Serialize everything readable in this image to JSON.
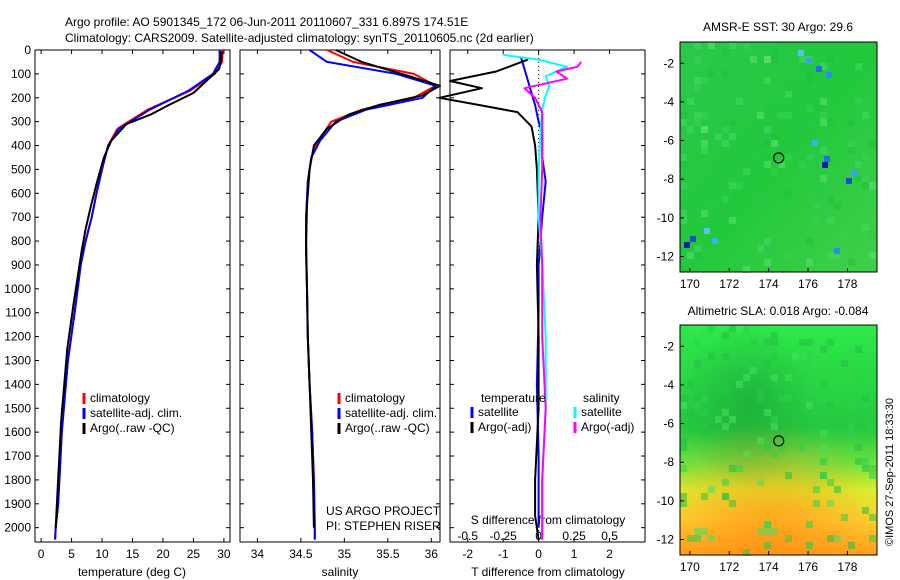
{
  "header": {
    "line1": "Argo profile: AO 5901345_172 06-Jun-2011 20110607_331 6.897S 174.51E",
    "line2": "Climatology: CARS2009. Satellite-adjusted climatology: synTS_20110605.nc (2d earlier)"
  },
  "credit": "©IMOS 27-Sep-2011 18:33:30",
  "colors": {
    "climatology": "#ff0000",
    "satellite": "#0000ff",
    "argo": "#000000",
    "salinity_satellite": "#00ffff",
    "salinity_argo": "#ff00ff"
  },
  "depth_ticks": [
    0,
    100,
    200,
    300,
    400,
    500,
    600,
    700,
    800,
    900,
    1000,
    1100,
    1200,
    1300,
    1400,
    1500,
    1600,
    1700,
    1800,
    1900,
    2000
  ],
  "depth_range": [
    0,
    2060
  ],
  "chart_data": [
    {
      "type": "line",
      "name": "temperature-profile",
      "xlabel": "temperature (deg C)",
      "ylabel": "depth",
      "xlim": [
        -1,
        31
      ],
      "xticks": [
        0,
        5,
        10,
        15,
        20,
        25,
        30
      ],
      "legend": [
        "climatology",
        "satellite-adj. clim.",
        "Argo(..raw -QC)"
      ],
      "series": [
        {
          "name": "climatology",
          "color_key": "climatology",
          "x": [
            29.8,
            29.7,
            28.5,
            24.5,
            17.5,
            12.5,
            11,
            10,
            9.1,
            8.3,
            7.3,
            6.5,
            6,
            5.5,
            4.4,
            3.4,
            2.8,
            2.4,
            2.3
          ],
          "y": [
            0,
            50,
            100,
            170,
            250,
            330,
            400,
            500,
            600,
            700,
            800,
            900,
            1000,
            1100,
            1300,
            1600,
            1900,
            2000,
            2050
          ]
        },
        {
          "name": "satellite-adj. clim.",
          "color_key": "satellite",
          "x": [
            29.3,
            29.3,
            28.2,
            24.2,
            17.8,
            12.8,
            11,
            10,
            9.1,
            8.3,
            7.3,
            6.5,
            6,
            5.5,
            4.4,
            3.4,
            2.8,
            2.4,
            2.3
          ],
          "y": [
            0,
            50,
            100,
            170,
            250,
            330,
            400,
            500,
            600,
            700,
            800,
            900,
            1000,
            1100,
            1300,
            1600,
            1900,
            2000,
            2050
          ]
        },
        {
          "name": "Argo(..raw -QC)",
          "color_key": "argo",
          "x": [
            29.6,
            29.5,
            29.2,
            25,
            21,
            18,
            14,
            11.5,
            10.3,
            9.2,
            8.2,
            7.3,
            6.6,
            6,
            5.4,
            4.3,
            3.3,
            2.7,
            2.4
          ],
          "y": [
            5,
            50,
            80,
            180,
            230,
            270,
            310,
            380,
            450,
            550,
            650,
            750,
            850,
            950,
            1050,
            1250,
            1550,
            1850,
            2000
          ]
        }
      ]
    },
    {
      "type": "line",
      "name": "salinity-profile",
      "xlabel": "salinity",
      "xlim": [
        33.8,
        36.1
      ],
      "xticks": [
        34,
        34.5,
        35,
        35.5,
        36
      ],
      "legend": [
        "climatology",
        "satellite-adj. clim.",
        "Argo(..raw -QC)"
      ],
      "series": [
        {
          "name": "climatology",
          "color_key": "climatology",
          "x": [
            34.8,
            35.1,
            35.8,
            36.05,
            35.8,
            35.2,
            34.85,
            34.7,
            34.62,
            34.58,
            34.56,
            34.56,
            34.57,
            34.58,
            34.6,
            34.63,
            34.65,
            34.66,
            34.66
          ],
          "y": [
            0,
            50,
            100,
            150,
            200,
            250,
            300,
            380,
            450,
            550,
            700,
            850,
            1000,
            1200,
            1400,
            1600,
            1800,
            2000,
            2050
          ]
        },
        {
          "name": "satellite-adj. clim.",
          "color_key": "satellite",
          "x": [
            34.6,
            34.8,
            35.6,
            36.05,
            35.9,
            35.25,
            34.9,
            34.72,
            34.62,
            34.58,
            34.56,
            34.56,
            34.57,
            34.58,
            34.6,
            34.63,
            34.65,
            34.66,
            34.66
          ],
          "y": [
            0,
            50,
            100,
            150,
            200,
            250,
            300,
            380,
            450,
            550,
            700,
            850,
            1000,
            1200,
            1400,
            1600,
            1800,
            2000,
            2050
          ]
        },
        {
          "name": "Argo(..raw -QC)",
          "color_key": "argo",
          "x": [
            34.9,
            35.2,
            35.75,
            36.1,
            35.9,
            35.4,
            35.05,
            34.8,
            34.65,
            34.6,
            34.57,
            34.56,
            34.57,
            34.58,
            34.6,
            34.62,
            34.64,
            34.65
          ],
          "y": [
            0,
            50,
            110,
            150,
            190,
            230,
            270,
            330,
            400,
            500,
            650,
            800,
            1000,
            1200,
            1400,
            1600,
            1800,
            2000
          ]
        }
      ],
      "annotation": [
        "US ARGO PROJECT",
        "PI: STEPHEN RISER"
      ]
    },
    {
      "type": "line",
      "name": "difference-profile",
      "xlabel": "T difference from climatology",
      "xlabel_top": "S difference from climatology",
      "t_xlim": [
        -2.5,
        3
      ],
      "t_xticks": [
        -2,
        -1,
        0,
        1,
        2
      ],
      "s_xticks_labels": [
        "-0.5",
        "-0.25",
        "0",
        "0.25",
        "0.5"
      ],
      "s_xticks_positions_t_units": [
        -2,
        -1,
        0,
        1,
        2
      ],
      "legend": {
        "temperature_heading": "temperature",
        "salinity_heading": "salinity",
        "entries": [
          "satellite",
          "Argo(-adj)",
          "satellite",
          "Argo(-adj)"
        ]
      },
      "series": [
        {
          "name": "T satellite",
          "color_key": "satellite",
          "x": [
            -0.5,
            -0.4,
            -0.3,
            -0.2,
            -0.1,
            0,
            0.1,
            0.1,
            0.2,
            0.1,
            0,
            0,
            -0.05,
            0,
            0
          ],
          "y": [
            30,
            80,
            130,
            180,
            230,
            300,
            350,
            450,
            550,
            700,
            900,
            1100,
            1400,
            1700,
            2000
          ]
        },
        {
          "name": "T Argo(-adj)",
          "color_key": "argo",
          "x": [
            -0.3,
            -1.2,
            -2.5,
            -1.6,
            -2.8,
            -1.7,
            -0.6,
            -0.2,
            -0.1,
            -0.05,
            0,
            -0.05,
            0,
            0,
            -0.1,
            -0.1,
            0
          ],
          "y": [
            40,
            90,
            130,
            160,
            200,
            230,
            260,
            320,
            400,
            500,
            700,
            900,
            1200,
            1500,
            1800,
            1950,
            2050
          ]
        },
        {
          "name": "S satellite",
          "color_key": "salinity_satellite",
          "x": [
            -1,
            0,
            0.8,
            0.2,
            0.3,
            0.2,
            0.1,
            0.05,
            0,
            0,
            0.1,
            0.2,
            0.2,
            0.1,
            0.1
          ],
          "y": [
            20,
            40,
            70,
            110,
            150,
            190,
            250,
            350,
            500,
            700,
            900,
            1200,
            1500,
            1800,
            2050
          ]
        },
        {
          "name": "S Argo(-adj)",
          "color_key": "salinity_argo",
          "x": [
            1.2,
            1.1,
            0.5,
            0.8,
            -0.4,
            -0.1,
            0.1,
            0.1,
            0.1,
            0.05,
            0.1,
            0.1,
            0.2,
            0.1,
            0.1
          ],
          "y": [
            50,
            70,
            90,
            120,
            160,
            200,
            260,
            350,
            500,
            700,
            900,
            1200,
            1500,
            1800,
            2050
          ]
        }
      ]
    },
    {
      "type": "heatmap",
      "name": "sst-map",
      "title": "AMSR-E SST: 30  Argo: 29.6",
      "xlim": [
        169.5,
        179.5
      ],
      "ylim": [
        -12.8,
        -0.9
      ],
      "xticks": [
        170,
        172,
        174,
        176,
        178
      ],
      "yticks": [
        -2,
        -4,
        -6,
        -8,
        -10,
        -12
      ],
      "argo_position": {
        "lon": 174.51,
        "lat": -6.897
      }
    },
    {
      "type": "heatmap",
      "name": "sla-map",
      "title": "Altimetric SLA: 0.018  Argo: -0.084",
      "xlim": [
        169.5,
        179.5
      ],
      "ylim": [
        -12.8,
        -0.9
      ],
      "xticks": [
        170,
        172,
        174,
        176,
        178
      ],
      "yticks": [
        -2,
        -4,
        -6,
        -8,
        -10,
        -12
      ],
      "argo_position": {
        "lon": 174.51,
        "lat": -6.897
      }
    }
  ]
}
